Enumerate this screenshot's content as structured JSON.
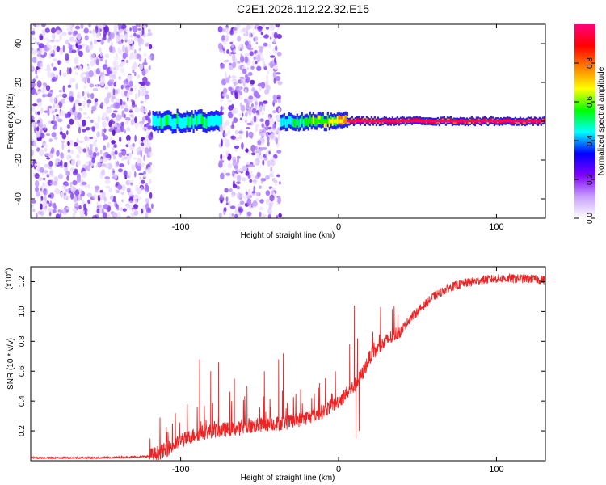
{
  "title": "C2E1.2026.112.22.32.E15",
  "chart_data": [
    {
      "type": "heatmap",
      "xlabel": "Height of straight line (km)",
      "ylabel": "Frequency (Hz)",
      "xlim": [
        -195,
        131
      ],
      "ylim": [
        -50,
        50
      ],
      "x_ticks": [
        -100,
        0,
        100
      ],
      "y_ticks": [
        -40,
        -20,
        0,
        20,
        40
      ],
      "colorbar": {
        "label": "Normalized spectral amplitude",
        "range": [
          0,
          1
        ],
        "ticks": [
          "0.0",
          "0.2",
          "0.4",
          "0.6",
          "0.8"
        ],
        "colors": [
          "#ffffff",
          "#c8a0ff",
          "#8000ff",
          "#0000ff",
          "#00ffff",
          "#00ff00",
          "#ffff00",
          "#ff8000",
          "#ff0000",
          "#ff0080"
        ]
      },
      "regions": [
        {
          "x": [
            -195,
            -118
          ],
          "kind": "noise"
        },
        {
          "x": [
            -118,
            -75
          ],
          "kind": "blue-cyan band",
          "freq": 0,
          "half_width": 5,
          "amplitude": 0.3
        },
        {
          "x": [
            -75,
            -37
          ],
          "kind": "noise"
        },
        {
          "x": [
            -37,
            5
          ],
          "kind": "band rising to red",
          "freq": 0,
          "half_width": 4,
          "amplitude": 0.75
        },
        {
          "x": [
            5,
            131
          ],
          "kind": "red line",
          "freq": 0,
          "half_width": 2,
          "amplitude": 0.95
        }
      ]
    },
    {
      "type": "line",
      "xlabel": "Height of straight line (km)",
      "ylabel": "SNR (10 * v/v)",
      "y_multiplier": "(x10",
      "y_multiplier_exp": "4",
      "y_multiplier_close": ")",
      "xlim": [
        -195,
        131
      ],
      "ylim": [
        0,
        1.3
      ],
      "x_ticks": [
        -100,
        0,
        100
      ],
      "y_ticks": [
        "0.2",
        "0.4",
        "0.6",
        "0.8",
        "1.0",
        "1.2"
      ],
      "color": "#ee2222",
      "series": [
        {
          "x": [
            -195,
            -170,
            -150,
            -130,
            -120,
            -110,
            -100,
            -90,
            -80,
            -70,
            -60,
            -50,
            -40,
            -30,
            -20,
            -10,
            0,
            10,
            15,
            20,
            30,
            40,
            45,
            50,
            60,
            70,
            80,
            90,
            100,
            110,
            120,
            131
          ],
          "values": [
            0.02,
            0.02,
            0.02,
            0.025,
            0.03,
            0.07,
            0.13,
            0.18,
            0.2,
            0.21,
            0.22,
            0.24,
            0.25,
            0.26,
            0.29,
            0.33,
            0.4,
            0.5,
            0.58,
            0.7,
            0.8,
            0.88,
            0.95,
            1.0,
            1.1,
            1.16,
            1.19,
            1.21,
            1.22,
            1.22,
            1.22,
            1.21
          ],
          "spikes": [
            {
              "x": -88,
              "value": 0.68
            },
            {
              "x": -81,
              "value": 0.6
            },
            {
              "x": -76,
              "value": 0.66
            },
            {
              "x": -66,
              "value": 0.55
            },
            {
              "x": -58,
              "value": 0.5
            },
            {
              "x": -47,
              "value": 0.6
            },
            {
              "x": -38,
              "value": 0.68
            },
            {
              "x": -35,
              "value": 0.72
            },
            {
              "x": -24,
              "value": 0.48
            },
            {
              "x": -12,
              "value": 0.52
            },
            {
              "x": -2,
              "value": 0.6
            },
            {
              "x": 7,
              "value": 0.78
            },
            {
              "x": 10,
              "value": 1.04
            },
            {
              "x": 12,
              "value": 0.82
            }
          ],
          "dips": [
            {
              "x": 11,
              "value": 0.15
            },
            {
              "x": 13,
              "value": 0.2
            }
          ]
        }
      ]
    }
  ]
}
